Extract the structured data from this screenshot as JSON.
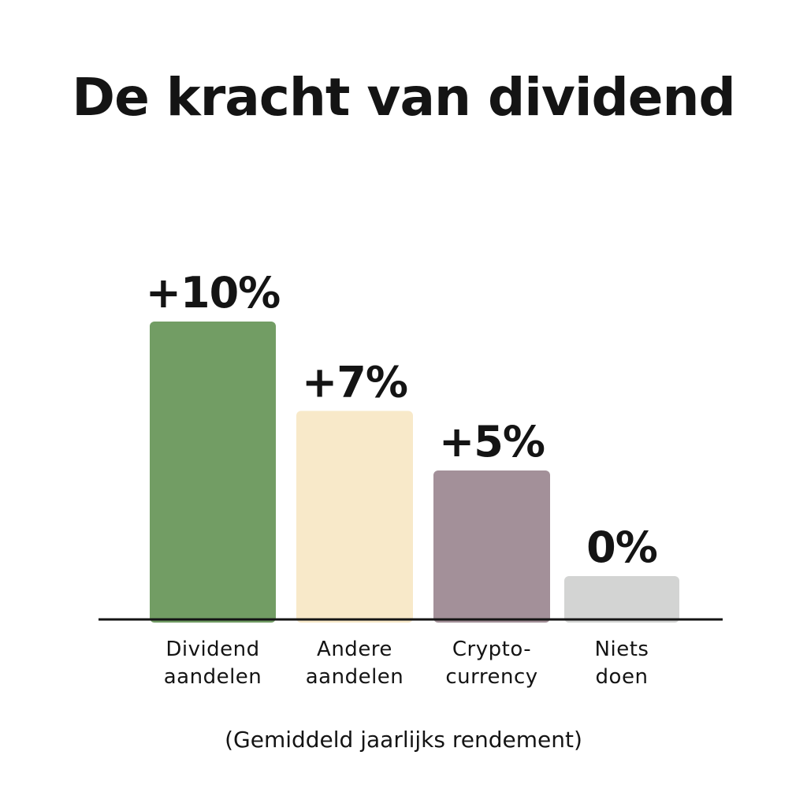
{
  "chart_data": {
    "type": "bar",
    "title": "De kracht van dividend",
    "subtitle": "(Gemiddeld jaarlijks rendement)",
    "categories": [
      [
        "Dividend",
        "aandelen"
      ],
      [
        "Andere",
        "aandelen"
      ],
      [
        "Crypto-",
        "currency"
      ],
      [
        "Niets",
        "doen"
      ]
    ],
    "values": [
      10,
      7,
      5,
      0
    ],
    "value_labels": [
      "+10%",
      "+7%",
      "+5%",
      "0%"
    ],
    "colors": [
      "#729d64",
      "#f8e9c9",
      "#a39099",
      "#d3d4d3"
    ],
    "unit": "%",
    "ylim": [
      0,
      10
    ],
    "grid": false,
    "legend": "none"
  }
}
